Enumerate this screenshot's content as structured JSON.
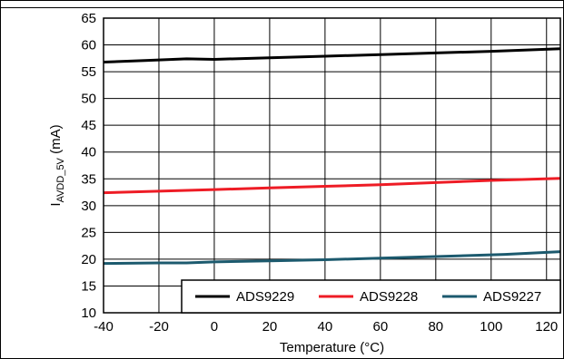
{
  "chart_data": {
    "type": "line",
    "xlabel": "Temperature (°C)",
    "ylabel_main": "I",
    "ylabel_sub": "AVDD_5V",
    "ylabel_unit": " (mA)",
    "xlim": [
      -40,
      125
    ],
    "ylim": [
      10,
      65
    ],
    "x_ticks": [
      -40,
      -20,
      0,
      20,
      40,
      60,
      80,
      100,
      120
    ],
    "y_ticks": [
      10,
      15,
      20,
      25,
      30,
      35,
      40,
      45,
      50,
      55,
      60,
      65
    ],
    "grid": true,
    "legend_position": "bottom-right",
    "series": [
      {
        "name": "ADS9229",
        "color": "#000000",
        "x": [
          -40,
          -25,
          -10,
          0,
          20,
          40,
          60,
          80,
          100,
          125
        ],
        "y": [
          56.8,
          57.1,
          57.4,
          57.3,
          57.6,
          57.9,
          58.2,
          58.5,
          58.8,
          59.3
        ]
      },
      {
        "name": "ADS9228",
        "color": "#ee1c25",
        "x": [
          -40,
          -20,
          0,
          20,
          40,
          60,
          80,
          100,
          125
        ],
        "y": [
          32.4,
          32.7,
          33.0,
          33.3,
          33.6,
          33.9,
          34.3,
          34.7,
          35.1
        ]
      },
      {
        "name": "ADS9227",
        "color": "#1c5a6e",
        "x": [
          -40,
          -20,
          -10,
          0,
          20,
          40,
          60,
          80,
          105,
          125
        ],
        "y": [
          19.2,
          19.3,
          19.3,
          19.5,
          19.7,
          19.9,
          20.2,
          20.5,
          20.9,
          21.4
        ]
      }
    ]
  }
}
